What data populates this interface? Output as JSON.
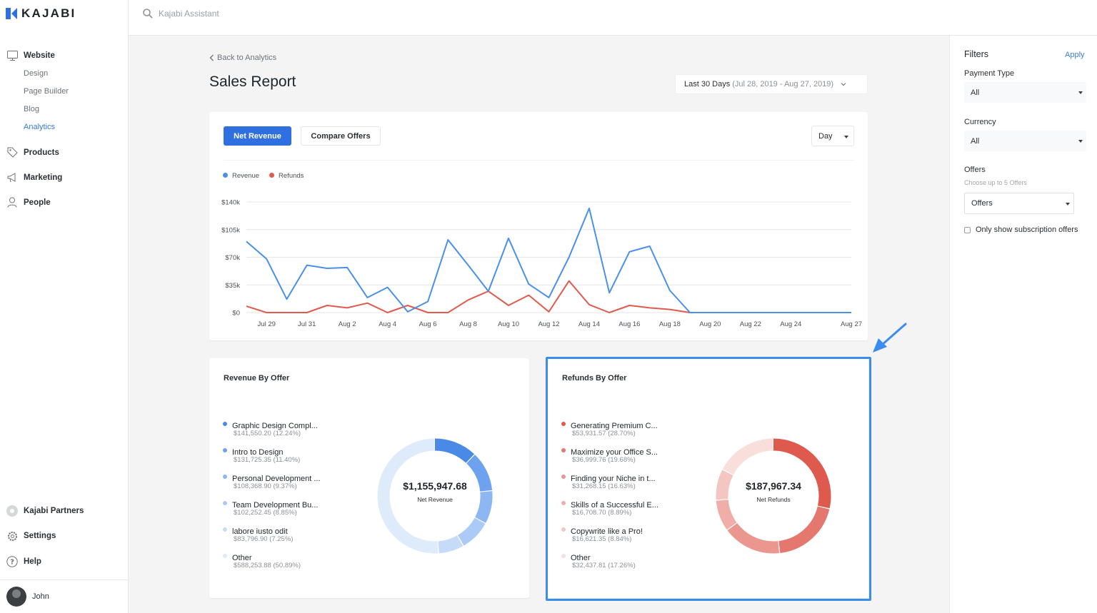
{
  "app": {
    "name": "KAJABI",
    "brand_color": "#2f6fe0"
  },
  "search": {
    "placeholder": "Kajabi Assistant",
    "icon": "search-icon"
  },
  "sidebar": {
    "items": [
      {
        "label": "Website",
        "icon": "monitor-icon",
        "children": [
          {
            "label": "Design"
          },
          {
            "label": "Page Builder"
          },
          {
            "label": "Blog"
          },
          {
            "label": "Analytics",
            "active": true
          }
        ]
      },
      {
        "label": "Products",
        "icon": "tag-icon"
      },
      {
        "label": "Marketing",
        "icon": "megaphone-icon"
      },
      {
        "label": "People",
        "icon": "person-icon"
      }
    ],
    "bottom": [
      {
        "label": "Kajabi Partners",
        "icon": "partners-icon"
      },
      {
        "label": "Settings",
        "icon": "gear-icon"
      },
      {
        "label": "Help",
        "icon": "help-icon"
      }
    ],
    "user": {
      "name": "John"
    }
  },
  "page": {
    "back_label": "Back to Analytics",
    "title": "Sales Report",
    "date_range": {
      "label": "Last 30 Days",
      "detail": "(Jul 28, 2019 - Aug 27, 2019)"
    }
  },
  "chart_controls": {
    "net_revenue": "Net Revenue",
    "compare_offers": "Compare Offers",
    "interval": "Day"
  },
  "chart_data": {
    "type": "line",
    "x": [
      "Jul 28",
      "Jul 29",
      "Jul 30",
      "Jul 31",
      "Aug 1",
      "Aug 2",
      "Aug 3",
      "Aug 4",
      "Aug 5",
      "Aug 6",
      "Aug 7",
      "Aug 8",
      "Aug 9",
      "Aug 10",
      "Aug 11",
      "Aug 12",
      "Aug 13",
      "Aug 14",
      "Aug 15",
      "Aug 16",
      "Aug 17",
      "Aug 18",
      "Aug 19",
      "Aug 20",
      "Aug 21",
      "Aug 22",
      "Aug 23",
      "Aug 24",
      "Aug 25",
      "Aug 26",
      "Aug 27"
    ],
    "x_tick_labels": [
      "Jul 29",
      "Jul 31",
      "Aug 2",
      "Aug 4",
      "Aug 6",
      "Aug 8",
      "Aug 10",
      "Aug 12",
      "Aug 14",
      "Aug 16",
      "Aug 18",
      "Aug 20",
      "Aug 22",
      "Aug 24",
      "Aug 27"
    ],
    "series": [
      {
        "name": "Revenue",
        "color": "#4a90e8",
        "values": [
          90000,
          68000,
          17000,
          60000,
          56000,
          57000,
          19000,
          32000,
          1000,
          14000,
          92000,
          60000,
          27000,
          94000,
          36000,
          19000,
          70000,
          132000,
          25000,
          77000,
          84000,
          28000,
          0,
          0,
          0,
          0,
          0,
          0,
          0,
          0,
          0
        ]
      },
      {
        "name": "Refunds",
        "color": "#e05a4e",
        "values": [
          8000,
          0,
          0,
          0,
          9000,
          6000,
          12000,
          0,
          9000,
          0,
          0,
          16000,
          27000,
          9000,
          22000,
          1000,
          40000,
          10000,
          0,
          9000,
          6000,
          4000,
          0,
          0,
          0,
          0,
          0,
          0,
          0,
          0,
          0
        ]
      }
    ],
    "ylim": [
      0,
      140000
    ],
    "y_tick_labels": [
      "$0",
      "$35k",
      "$70k",
      "$105k",
      "$140k"
    ],
    "grid": true,
    "legend": "top-left"
  },
  "revenue_by_offer": {
    "title": "Revenue By Offer",
    "total": "$1,155,947.68",
    "total_label": "Net Revenue",
    "offers": [
      {
        "name": "Graphic Design Compl...",
        "value": "$141,550.20 (12.24%)",
        "pct": 12.24,
        "color": "#4a8ae6"
      },
      {
        "name": "Intro to Design",
        "value": "$131,725.35 (11.40%)",
        "pct": 11.4,
        "color": "#6ea2ee"
      },
      {
        "name": "Personal Development ...",
        "value": "$108,368.90 (9.37%)",
        "pct": 9.37,
        "color": "#8db7f2"
      },
      {
        "name": "Team Development Bu...",
        "value": "$102,252.45 (8.85%)",
        "pct": 8.85,
        "color": "#abcaf5"
      },
      {
        "name": "labore iusto odit",
        "value": "$83,796.90 (7.25%)",
        "pct": 7.25,
        "color": "#c6dbf8"
      },
      {
        "name": "Other",
        "value": "$588,253.88 (50.89%)",
        "pct": 50.89,
        "color": "#deebfb"
      }
    ]
  },
  "refunds_by_offer": {
    "title": "Refunds By Offer",
    "total": "$187,967.34",
    "total_label": "Net Refunds",
    "offers": [
      {
        "name": "Generating Premium C...",
        "value": "$53,931.57 (28.70%)",
        "pct": 28.7,
        "color": "#de5a4f"
      },
      {
        "name": "Maximize your Office S...",
        "value": "$36,999.76 (19.68%)",
        "pct": 19.68,
        "color": "#e5786e"
      },
      {
        "name": "Finding your Niche in t...",
        "value": "$31,268.15 (16.63%)",
        "pct": 16.63,
        "color": "#eb968e"
      },
      {
        "name": "Skills of a Successful E...",
        "value": "$16,708.70 (8.89%)",
        "pct": 8.89,
        "color": "#efaea8"
      },
      {
        "name": "Copywrite like a Pro!",
        "value": "$16,621.35 (8.84%)",
        "pct": 8.84,
        "color": "#f3c6c1"
      },
      {
        "name": "Other",
        "value": "$32,437.81 (17.26%)",
        "pct": 17.26,
        "color": "#f8dfdc"
      }
    ]
  },
  "filters": {
    "title": "Filters",
    "apply": "Apply",
    "payment_type": {
      "label": "Payment Type",
      "value": "All"
    },
    "currency": {
      "label": "Currency",
      "value": "All"
    },
    "offers": {
      "label": "Offers",
      "hint": "Choose up to 5 Offers",
      "value": "Offers"
    },
    "subscription_only": {
      "label": "Only show subscription offers",
      "checked": false
    }
  },
  "highlight_color": "#3b8cf0"
}
